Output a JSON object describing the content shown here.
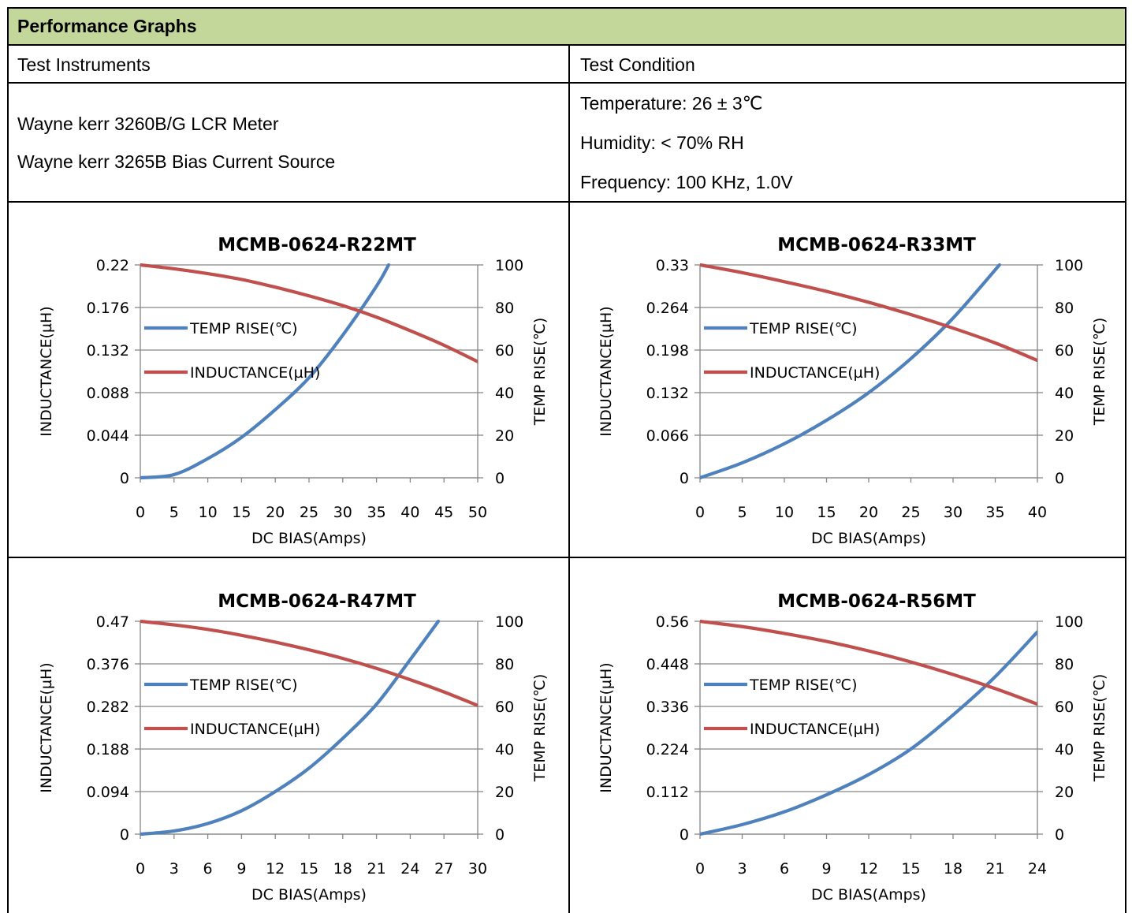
{
  "header": {
    "title": "Performance Graphs"
  },
  "table": {
    "instruments_label": "Test Instruments",
    "condition_label": "Test Condition",
    "instruments": [
      "Wayne kerr 3260B/G LCR Meter",
      "Wayne kerr 3265B Bias Current Source"
    ],
    "conditions": [
      "Temperature: 26 ± 3℃",
      "Humidity: < 70% RH",
      "Frequency: 100 KHz, 1.0V"
    ]
  },
  "colors": {
    "temp_rise": "#4f81bd",
    "inductance": "#c0504d",
    "grid": "#868686",
    "header_bg": "#c4d79b"
  },
  "chart_data": [
    {
      "type": "line",
      "title": "MCMB-0624-R22MT",
      "xlabel": "DC  BIAS(Amps)",
      "ylabel": "INDUCTANCE(µH)",
      "y2label": "TEMP RISE(℃)",
      "xlim": [
        0,
        50
      ],
      "xticks": [
        "0",
        "5",
        "10",
        "15",
        "20",
        "25",
        "30",
        "35",
        "40",
        "45",
        "50"
      ],
      "ylim": [
        0,
        0.22
      ],
      "yticks": [
        "0",
        "0.044",
        "0.088",
        "0.132",
        "0.176",
        "0.22"
      ],
      "y2lim": [
        0,
        100
      ],
      "y2ticks": [
        "0",
        "20",
        "40",
        "60",
        "80",
        "100"
      ],
      "legend": [
        "TEMP RISE(℃)",
        "INDUCTANCE(µH)"
      ],
      "legend_position": "left",
      "series": [
        {
          "name": "TEMP RISE(℃)",
          "axis": "right",
          "x": [
            0,
            5,
            10,
            15,
            20,
            25,
            30,
            35,
            36.8
          ],
          "values": [
            0,
            1.5,
            9,
            19,
            32,
            47,
            67,
            90,
            100
          ]
        },
        {
          "name": "INDUCTANCE(µH)",
          "axis": "left",
          "x": [
            0,
            5,
            10,
            15,
            20,
            25,
            30,
            35,
            40,
            45,
            50
          ],
          "values": [
            0.22,
            0.216,
            0.211,
            0.205,
            0.197,
            0.188,
            0.178,
            0.166,
            0.152,
            0.137,
            0.12
          ]
        }
      ]
    },
    {
      "type": "line",
      "title": "MCMB-0624-R33MT",
      "xlabel": "DC  BIAS(Amps)",
      "ylabel": "INDUCTANCE(µH)",
      "y2label": "TEMP RISE(℃)",
      "xlim": [
        0,
        40
      ],
      "xticks": [
        "0",
        "5",
        "10",
        "15",
        "20",
        "25",
        "30",
        "35",
        "40"
      ],
      "ylim": [
        0,
        0.33
      ],
      "yticks": [
        "0",
        "0.066",
        "0.132",
        "0.198",
        "0.264",
        "0.33"
      ],
      "y2lim": [
        0,
        100
      ],
      "y2ticks": [
        "0",
        "20",
        "40",
        "60",
        "80",
        "100"
      ],
      "legend": [
        "TEMP RISE(℃)",
        "INDUCTANCE(µH)"
      ],
      "legend_position": "left",
      "series": [
        {
          "name": "TEMP RISE(℃)",
          "axis": "right",
          "x": [
            0,
            5,
            10,
            15,
            20,
            25,
            30,
            35.5
          ],
          "values": [
            0,
            7,
            16,
            27,
            40,
            56,
            75,
            100
          ]
        },
        {
          "name": "INDUCTANCE(µH)",
          "axis": "left",
          "x": [
            0,
            5,
            10,
            15,
            20,
            25,
            30,
            35,
            40
          ],
          "values": [
            0.33,
            0.318,
            0.304,
            0.289,
            0.272,
            0.253,
            0.232,
            0.209,
            0.182
          ]
        }
      ]
    },
    {
      "type": "line",
      "title": "MCMB-0624-R47MT",
      "xlabel": "DC  BIAS(Amps)",
      "ylabel": "INDUCTANCE(µH)",
      "y2label": "TEMP RISE(℃)",
      "xlim": [
        0,
        30
      ],
      "xticks": [
        "0",
        "3",
        "6",
        "9",
        "12",
        "15",
        "18",
        "21",
        "24",
        "27",
        "30"
      ],
      "ylim": [
        0,
        0.47
      ],
      "yticks": [
        "0",
        "0.094",
        "0.188",
        "0.282",
        "0.376",
        "0.47"
      ],
      "y2lim": [
        0,
        100
      ],
      "y2ticks": [
        "0",
        "20",
        "40",
        "60",
        "80",
        "100"
      ],
      "legend": [
        "TEMP RISE(℃)",
        "INDUCTANCE(µH)"
      ],
      "legend_position": "left",
      "series": [
        {
          "name": "TEMP RISE(℃)",
          "axis": "right",
          "x": [
            0,
            3,
            6,
            9,
            12,
            15,
            18,
            21,
            24,
            26.5
          ],
          "values": [
            0,
            1.5,
            5,
            11,
            20,
            31,
            45,
            61,
            82,
            100
          ]
        },
        {
          "name": "INDUCTANCE(µH)",
          "axis": "left",
          "x": [
            0,
            3,
            6,
            9,
            12,
            15,
            18,
            21,
            24,
            27,
            30
          ],
          "values": [
            0.47,
            0.462,
            0.452,
            0.439,
            0.424,
            0.407,
            0.388,
            0.366,
            0.341,
            0.314,
            0.284
          ]
        }
      ]
    },
    {
      "type": "line",
      "title": "MCMB-0624-R56MT",
      "xlabel": "DC  BIAS(Amps)",
      "ylabel": "INDUCTANCE(µH)",
      "y2label": "TEMP RISE(℃)",
      "xlim": [
        0,
        24
      ],
      "xticks": [
        "0",
        "3",
        "6",
        "9",
        "12",
        "15",
        "18",
        "21",
        "24"
      ],
      "ylim": [
        0,
        0.56
      ],
      "yticks": [
        "0",
        "0.112",
        "0.224",
        "0.336",
        "0.448",
        "0.56"
      ],
      "y2lim": [
        0,
        100
      ],
      "y2ticks": [
        "0",
        "20",
        "40",
        "60",
        "80",
        "100"
      ],
      "legend": [
        "TEMP RISE(℃)",
        "INDUCTANCE(µH)"
      ],
      "legend_position": "left",
      "series": [
        {
          "name": "TEMP RISE(℃)",
          "axis": "right",
          "x": [
            0,
            3,
            6,
            9,
            12,
            15,
            18,
            21,
            24
          ],
          "values": [
            0,
            4.5,
            10.5,
            18.5,
            28,
            40,
            56,
            74,
            95
          ]
        },
        {
          "name": "INDUCTANCE(µH)",
          "axis": "left",
          "x": [
            0,
            3,
            6,
            9,
            12,
            15,
            18,
            21,
            24
          ],
          "values": [
            0.56,
            0.546,
            0.528,
            0.507,
            0.482,
            0.453,
            0.42,
            0.383,
            0.342
          ]
        }
      ]
    }
  ]
}
